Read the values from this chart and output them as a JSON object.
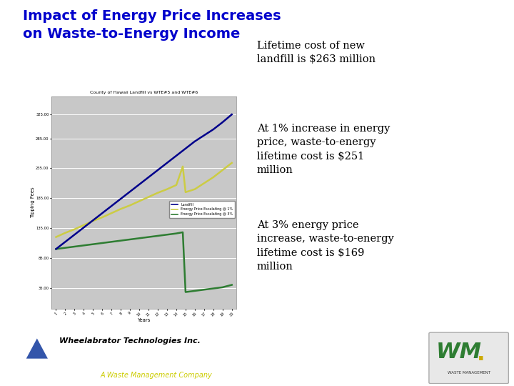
{
  "title_line1": "Impact of Energy Price Increases",
  "title_line2": "on Waste-to-Energy Income",
  "title_color": "#0000CC",
  "title_fontsize": 14,
  "chart_title": "County of Hawaii Landfill vs WTE#5 and WTE#6",
  "xlabel": "Years",
  "ylabel": "Tipping Fees",
  "bg_color": "#ffffff",
  "chart_bg": "#c8c8c8",
  "text1": "Lifetime cost of new\nlandfill is $263 million",
  "text2": "At 1% increase in energy\nprice, waste-to-energy\nlifetime cost is $251\nmillion",
  "text3": "At 3% energy price\nincrease, waste-to-energy\nlifetime cost is $169\nmillion",
  "text_fontsize": 10.5,
  "footer_company": "Wheelabrator Technologies Inc.",
  "footer_sub": "A Waste Management Company",
  "footer_green": "#1a7a3c",
  "footer_sub_color": "#cccc00",
  "landfill_color": "#00008B",
  "wte1_color": "#cccc44",
  "wte3_color": "#2e7d32",
  "legend_labels": [
    "Landfill",
    "Energy Price Escalating @ 1%",
    "Energy Price Escalating @ 3%"
  ],
  "ytick_vals": [
    35,
    85,
    135,
    185,
    235,
    285,
    325
  ],
  "lf_x": [
    1,
    2,
    3,
    4,
    5,
    6,
    7,
    8,
    9,
    10,
    11,
    12,
    13,
    14,
    15,
    16,
    17,
    18,
    19,
    20
  ],
  "lf_y": [
    100,
    112,
    124,
    136,
    148,
    160,
    172,
    184,
    196,
    208,
    220,
    232,
    244,
    256,
    268,
    280,
    290,
    300,
    312,
    325
  ],
  "w1_x": [
    1,
    2,
    3,
    4,
    5,
    6,
    7,
    8,
    9,
    10,
    11,
    12,
    13,
    14,
    14.7,
    15,
    16,
    17,
    18,
    19,
    20
  ],
  "w1_y": [
    120,
    127,
    133,
    140,
    147,
    153,
    160,
    167,
    173,
    180,
    187,
    194,
    200,
    207,
    238,
    195,
    200,
    210,
    220,
    232,
    244
  ],
  "w3_x": [
    1,
    2,
    3,
    4,
    5,
    6,
    7,
    8,
    9,
    10,
    11,
    12,
    13,
    14,
    14.7,
    15,
    16,
    17,
    18,
    19,
    20
  ],
  "w3_y": [
    100,
    102,
    104,
    106,
    108,
    110,
    112,
    114,
    116,
    118,
    120,
    122,
    124,
    126,
    128,
    28,
    30,
    32,
    34,
    36,
    40
  ]
}
